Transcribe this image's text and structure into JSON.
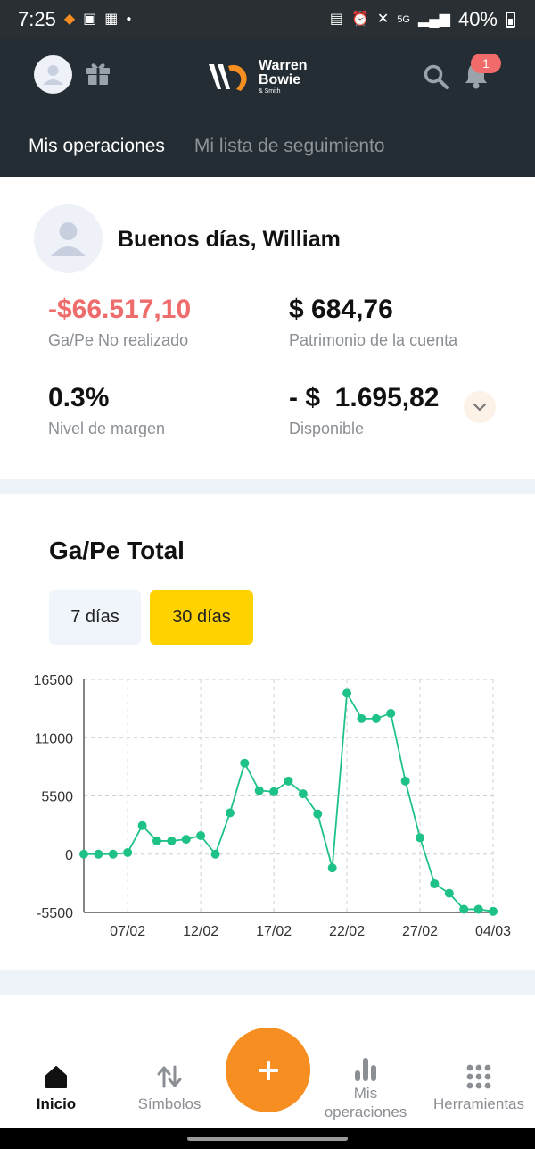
{
  "status_bar": {
    "time": "7:25",
    "battery": "40%"
  },
  "header": {
    "logo": {
      "line1": "Warren",
      "line2": "Bowie",
      "line3": "& Smith"
    },
    "notification_count": "1",
    "tabs": [
      {
        "label": "Mis operaciones",
        "active": true
      },
      {
        "label": "Mi lista de seguimiento",
        "active": false
      }
    ]
  },
  "account": {
    "greeting": "Buenos días, William",
    "metrics": {
      "unrealized": {
        "value": "-$66.517,10",
        "label": "Ga/Pe No realizado"
      },
      "equity": {
        "value": "$ 684,76",
        "label": "Patrimonio de la cuenta"
      },
      "margin_level": {
        "value": "0.3%",
        "label": "Nivel de margen"
      },
      "available": {
        "value": "- $  1.695,82",
        "label": "Disponible"
      }
    }
  },
  "chart_section": {
    "title": "Ga/Pe Total",
    "ranges": [
      {
        "label": "7 días",
        "active": false
      },
      {
        "label": "30 días",
        "active": true
      }
    ]
  },
  "chart_data": {
    "type": "line",
    "title": "Ga/Pe Total",
    "xlabel": "",
    "ylabel": "",
    "ylim": [
      -5500,
      16500
    ],
    "yticks": [
      16500,
      11000,
      5500,
      0,
      -5500
    ],
    "xtick_labels": [
      "07/02",
      "12/02",
      "17/02",
      "22/02",
      "27/02",
      "04/03"
    ],
    "x": [
      "04/02",
      "05/02",
      "06/02",
      "07/02",
      "08/02",
      "09/02",
      "10/02",
      "11/02",
      "12/02",
      "13/02",
      "14/02",
      "15/02",
      "16/02",
      "17/02",
      "18/02",
      "19/02",
      "20/02",
      "21/02",
      "22/02",
      "23/02",
      "24/02",
      "25/02",
      "26/02",
      "27/02",
      "28/02",
      "01/03",
      "02/03",
      "03/03",
      "04/03"
    ],
    "series": [
      {
        "values": [
          0,
          0,
          0,
          150,
          2700,
          1250,
          1250,
          1400,
          1750,
          0,
          3900,
          8600,
          6000,
          5900,
          6900,
          5700,
          3800,
          -1300,
          15200,
          12800,
          12800,
          13300,
          6900,
          1550,
          -2800,
          -3700,
          -5200,
          -5200,
          -5400
        ]
      }
    ],
    "grid": true,
    "line_color": "#1fc286"
  },
  "bottom_nav": {
    "items": [
      {
        "label": "Inicio",
        "active": true
      },
      {
        "label": "Símbolos",
        "active": false
      },
      {
        "label": "Mis",
        "label2": "operaciones",
        "active": false
      },
      {
        "label": "Herramientas",
        "active": false
      }
    ]
  }
}
